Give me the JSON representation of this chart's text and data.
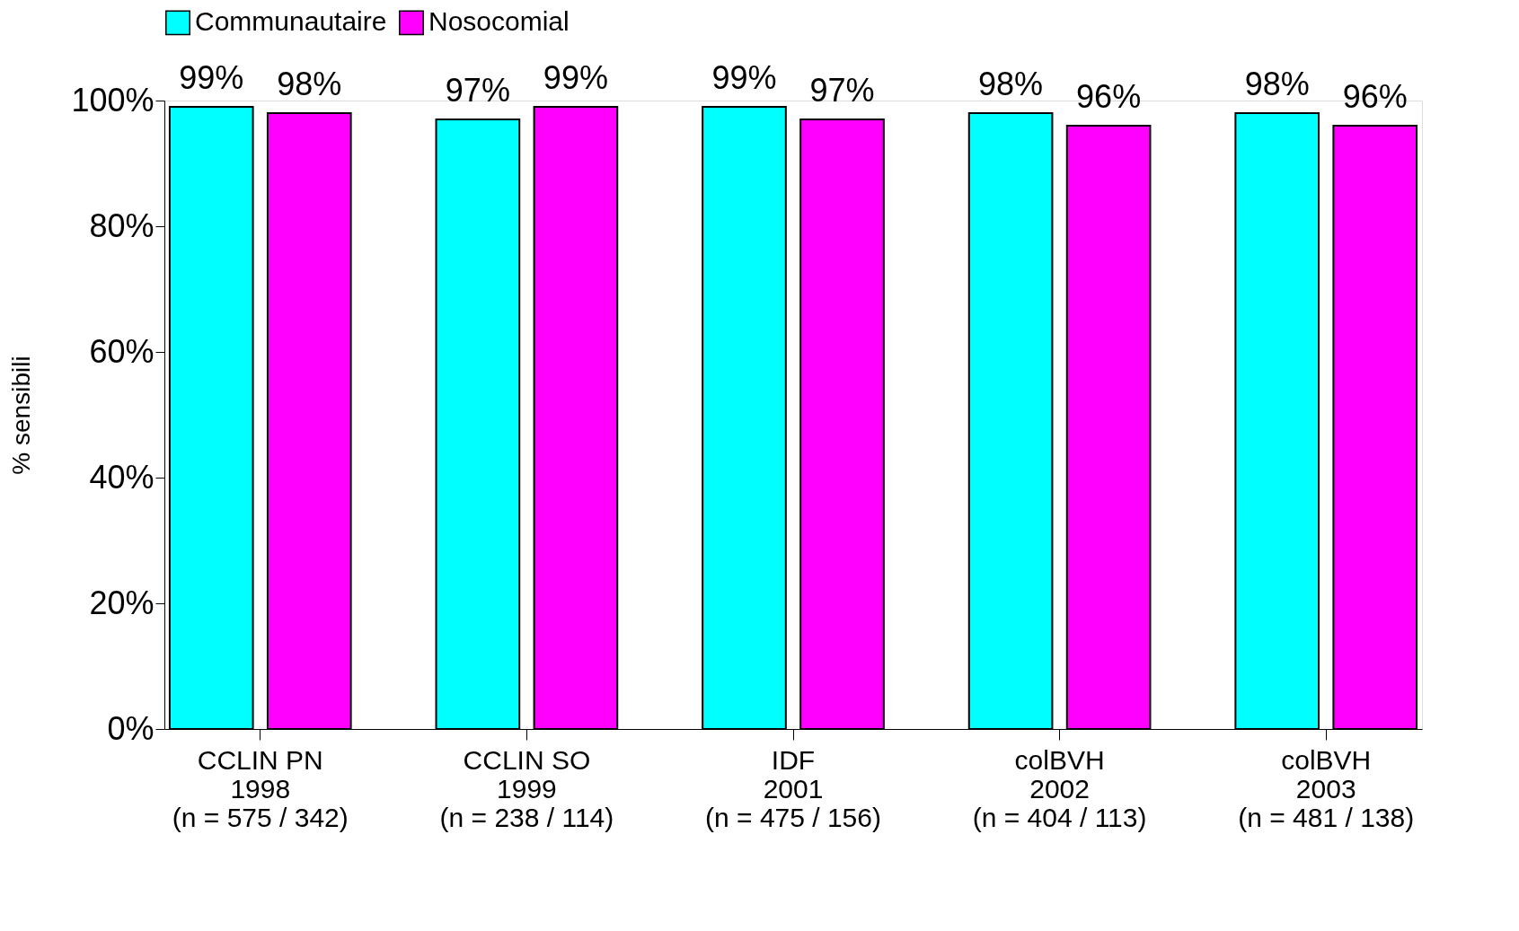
{
  "chart_data": {
    "type": "bar",
    "ylabel": "% sensibili",
    "categories": [
      "CCLIN PN\n1998\n(n = 575 / 342)",
      "CCLIN SO\n1999\n(n = 238 / 114)",
      "IDF\n2001\n(n = 475 / 156)",
      "colBVH\n2002\n(n = 404 / 113)",
      "colBVH\n2003\n(n = 481 / 138)"
    ],
    "series": [
      {
        "name": "Communautaire",
        "color": "#00ffff",
        "values": [
          99,
          97,
          99,
          98,
          98
        ],
        "value_labels": [
          "99%",
          "97%",
          "99%",
          "98%",
          "98%"
        ]
      },
      {
        "name": "Nosocomial",
        "color": "#ff00ff",
        "values": [
          98,
          99,
          97,
          96,
          96
        ],
        "value_labels": [
          "98%",
          "99%",
          "97%",
          "96%",
          "96%"
        ]
      }
    ],
    "ylim": [
      0,
      100
    ],
    "yticks": [
      {
        "value": 0,
        "label": "0%"
      },
      {
        "value": 20,
        "label": "20%"
      },
      {
        "value": 40,
        "label": "40%"
      },
      {
        "value": 60,
        "label": "60%"
      },
      {
        "value": 80,
        "label": "80%"
      },
      {
        "value": 100,
        "label": "100%"
      }
    ],
    "grid": false,
    "legend": "top"
  }
}
